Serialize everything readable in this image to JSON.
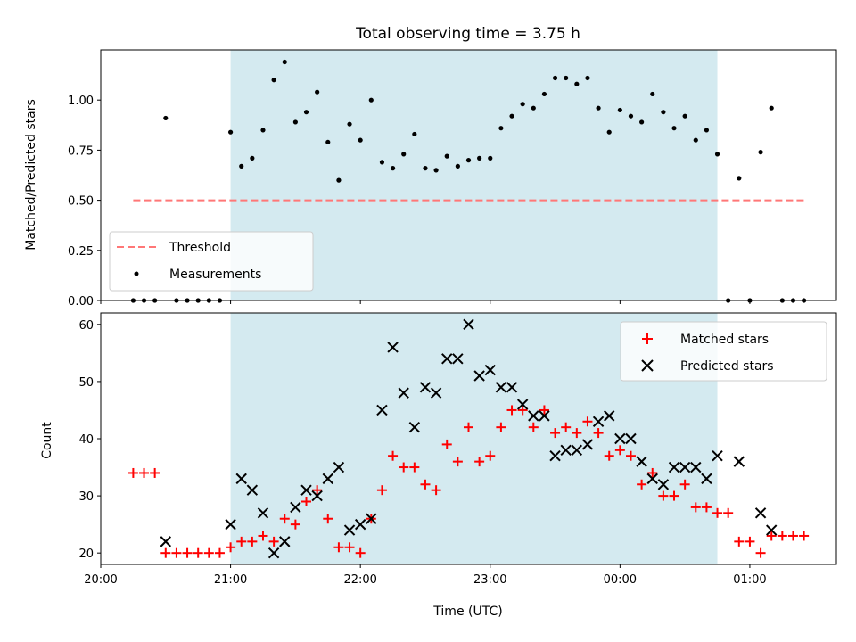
{
  "chart_data": [
    {
      "type": "scatter",
      "title": "Total observing time = 3.75 h",
      "xlabel": "",
      "ylabel": "Matched/Predicted stars",
      "ylim": [
        0,
        1.25
      ],
      "xlim": [
        "20:00",
        "01:40"
      ],
      "yticks": [
        "0.00",
        "0.25",
        "0.50",
        "0.75",
        "1.00"
      ],
      "shaded_window": {
        "start": "21:00",
        "end": "00:45",
        "color": "#d4eaf0"
      },
      "threshold": {
        "name": "Threshold",
        "value": 0.5,
        "x_start": "20:15",
        "x_end": "01:25",
        "color": "#ff7777",
        "style": "dashed"
      },
      "series": [
        {
          "name": "Measurements",
          "marker": "dot",
          "color": "#000000",
          "x": [
            "20:15",
            "20:20",
            "20:25",
            "20:30",
            "20:35",
            "20:40",
            "20:45",
            "20:50",
            "20:55",
            "21:00",
            "21:05",
            "21:10",
            "21:15",
            "21:20",
            "21:25",
            "21:30",
            "21:35",
            "21:40",
            "21:45",
            "21:50",
            "21:55",
            "22:00",
            "22:05",
            "22:10",
            "22:15",
            "22:20",
            "22:25",
            "22:30",
            "22:35",
            "22:40",
            "22:45",
            "22:50",
            "22:55",
            "23:00",
            "23:05",
            "23:10",
            "23:15",
            "23:20",
            "23:25",
            "23:30",
            "23:35",
            "23:40",
            "23:45",
            "23:50",
            "23:55",
            "00:00",
            "00:05",
            "00:10",
            "00:15",
            "00:20",
            "00:25",
            "00:30",
            "00:35",
            "00:40",
            "00:45",
            "00:50",
            "00:55",
            "01:00",
            "01:05",
            "01:10",
            "01:15",
            "01:20",
            "01:25"
          ],
          "y": [
            0,
            0,
            0,
            0.91,
            0,
            0,
            0,
            0,
            0,
            0.84,
            0.67,
            0.71,
            0.85,
            1.1,
            1.19,
            0.89,
            0.94,
            1.04,
            0.79,
            0.6,
            0.88,
            0.8,
            1.0,
            0.69,
            0.66,
            0.73,
            0.83,
            0.66,
            0.65,
            0.72,
            0.67,
            0.7,
            0.71,
            0.71,
            0.86,
            0.92,
            0.98,
            0.96,
            1.03,
            1.11,
            1.11,
            1.08,
            1.11,
            0.96,
            0.84,
            0.95,
            0.92,
            0.89,
            1.03,
            0.94,
            0.86,
            0.92,
            0.8,
            0.85,
            0.73,
            0,
            0.61,
            0,
            0.74,
            0.96,
            0,
            0,
            0
          ]
        }
      ],
      "legend": {
        "placement": "lower-left",
        "entries": [
          "Threshold",
          "Measurements"
        ]
      }
    },
    {
      "type": "scatter",
      "title": "",
      "xlabel": "Time (UTC)",
      "ylabel": "Count",
      "ylim": [
        18,
        62
      ],
      "xlim": [
        "20:00",
        "01:40"
      ],
      "xticks": [
        "20:00",
        "21:00",
        "22:00",
        "23:00",
        "00:00",
        "01:00"
      ],
      "yticks": [
        "20",
        "30",
        "40",
        "50",
        "60"
      ],
      "shaded_window": {
        "start": "21:00",
        "end": "00:45",
        "color": "#d4eaf0"
      },
      "series": [
        {
          "name": "Matched stars",
          "marker": "plus",
          "color": "#ff0000",
          "x": [
            "20:15",
            "20:20",
            "20:25",
            "20:30",
            "20:35",
            "20:40",
            "20:45",
            "20:50",
            "20:55",
            "21:00",
            "21:05",
            "21:10",
            "21:15",
            "21:20",
            "21:25",
            "21:30",
            "21:35",
            "21:40",
            "21:45",
            "21:50",
            "21:55",
            "22:00",
            "22:05",
            "22:10",
            "22:15",
            "22:20",
            "22:25",
            "22:30",
            "22:35",
            "22:40",
            "22:45",
            "22:50",
            "22:55",
            "23:00",
            "23:05",
            "23:10",
            "23:15",
            "23:20",
            "23:25",
            "23:30",
            "23:35",
            "23:40",
            "23:45",
            "23:50",
            "23:55",
            "00:00",
            "00:05",
            "00:10",
            "00:15",
            "00:20",
            "00:25",
            "00:30",
            "00:35",
            "00:40",
            "00:45",
            "00:50",
            "00:55",
            "01:00",
            "01:05",
            "01:10",
            "01:15",
            "01:20",
            "01:25"
          ],
          "y": [
            34,
            34,
            34,
            20,
            20,
            20,
            20,
            20,
            20,
            21,
            22,
            22,
            23,
            22,
            26,
            25,
            29,
            31,
            26,
            21,
            21,
            20,
            26,
            31,
            37,
            35,
            35,
            32,
            31,
            39,
            36,
            42,
            36,
            37,
            42,
            45,
            45,
            42,
            45,
            41,
            42,
            41,
            43,
            41,
            37,
            38,
            37,
            32,
            34,
            30,
            30,
            32,
            28,
            28,
            27,
            27,
            22,
            22,
            20,
            23,
            23,
            23,
            23
          ]
        },
        {
          "name": "Predicted stars",
          "marker": "x",
          "color": "#000000",
          "x": [
            "20:30",
            "21:00",
            "21:05",
            "21:10",
            "21:15",
            "21:20",
            "21:25",
            "21:30",
            "21:35",
            "21:40",
            "21:45",
            "21:50",
            "21:55",
            "22:00",
            "22:05",
            "22:10",
            "22:15",
            "22:20",
            "22:25",
            "22:30",
            "22:35",
            "22:40",
            "22:45",
            "22:50",
            "22:55",
            "23:00",
            "23:05",
            "23:10",
            "23:15",
            "23:20",
            "23:25",
            "23:30",
            "23:35",
            "23:40",
            "23:45",
            "23:50",
            "23:55",
            "00:00",
            "00:05",
            "00:10",
            "00:15",
            "00:20",
            "00:25",
            "00:30",
            "00:35",
            "00:40",
            "00:45",
            "00:55",
            "01:05",
            "01:10"
          ],
          "y": [
            22,
            25,
            33,
            31,
            27,
            20,
            22,
            28,
            31,
            30,
            33,
            35,
            24,
            25,
            26,
            45,
            56,
            48,
            42,
            49,
            48,
            54,
            54,
            60,
            51,
            52,
            49,
            49,
            46,
            44,
            44,
            37,
            38,
            38,
            39,
            43,
            44,
            40,
            40,
            36,
            33,
            32,
            35,
            35,
            35,
            33,
            37,
            36,
            27,
            24
          ]
        }
      ],
      "legend": {
        "placement": "top-right",
        "entries": [
          "Matched stars",
          "Predicted stars"
        ]
      }
    }
  ]
}
